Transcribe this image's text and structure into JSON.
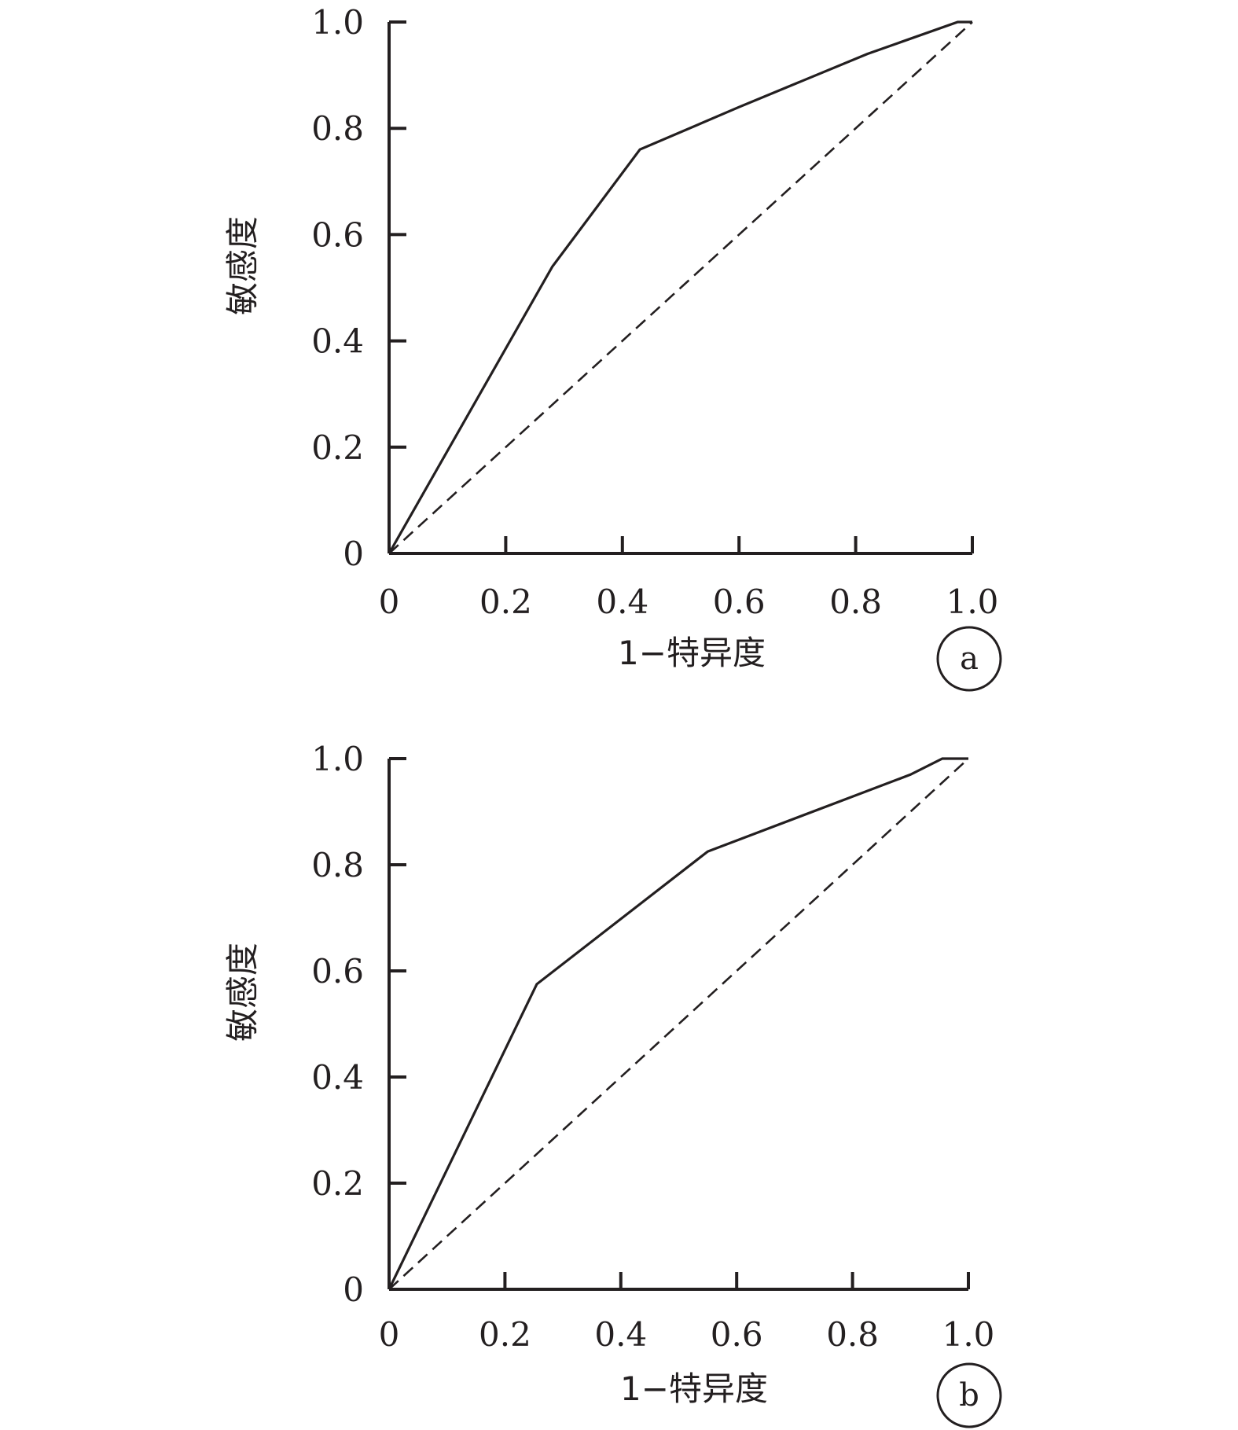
{
  "chart_data": [
    {
      "type": "line",
      "panel_label": "a",
      "xlabel": "1−特异度",
      "ylabel": "敏感度",
      "xlim": [
        0,
        1
      ],
      "ylim": [
        0,
        1
      ],
      "x_ticks": [
        "0",
        "0.2",
        "0.4",
        "0.6",
        "0.8",
        "1.0"
      ],
      "y_ticks": [
        "0",
        "0.2",
        "0.4",
        "0.6",
        "0.8",
        "1.0"
      ],
      "grid": false,
      "series": [
        {
          "style": "solid",
          "points": [
            [
              0,
              0
            ],
            [
              0.28,
              0.54
            ],
            [
              0.43,
              0.76
            ],
            [
              0.6,
              0.84
            ],
            [
              0.82,
              0.94
            ],
            [
              0.975,
              1.0
            ],
            [
              1.0,
              1.0
            ]
          ]
        },
        {
          "style": "dashed",
          "points": [
            [
              0,
              0
            ],
            [
              1,
              1
            ]
          ]
        }
      ]
    },
    {
      "type": "line",
      "panel_label": "b",
      "xlabel": "1−特异度",
      "ylabel": "敏感度",
      "xlim": [
        0,
        1
      ],
      "ylim": [
        0,
        1
      ],
      "x_ticks": [
        "0",
        "0.2",
        "0.4",
        "0.6",
        "0.8",
        "1.0"
      ],
      "y_ticks": [
        "0",
        "0.2",
        "0.4",
        "0.6",
        "0.8",
        "1.0"
      ],
      "grid": false,
      "series": [
        {
          "style": "solid",
          "points": [
            [
              0,
              0
            ],
            [
              0.255,
              0.575
            ],
            [
              0.55,
              0.825
            ],
            [
              0.9,
              0.97
            ],
            [
              0.955,
              1.0
            ],
            [
              1.0,
              1.0
            ]
          ]
        },
        {
          "style": "dashed",
          "points": [
            [
              0,
              0
            ],
            [
              1,
              1
            ]
          ]
        }
      ]
    }
  ]
}
